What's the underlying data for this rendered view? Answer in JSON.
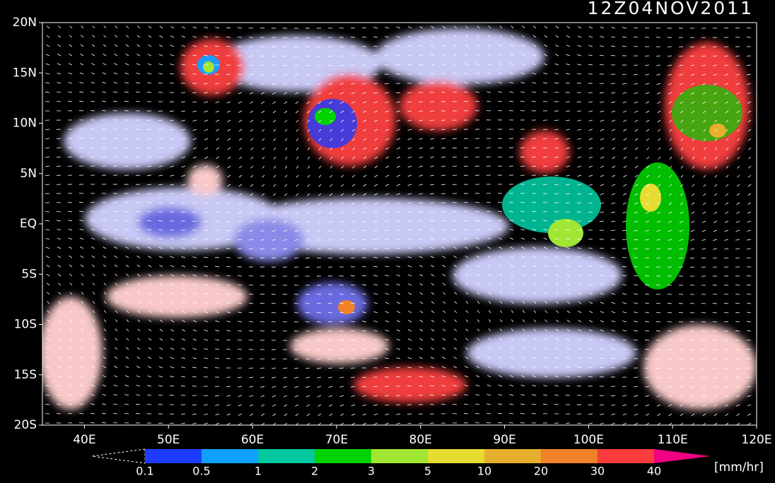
{
  "map": {
    "title": "12Z04NOV2011",
    "xlim": [
      35,
      120
    ],
    "ylim": [
      -20,
      20
    ],
    "lon_ticks": [
      {
        "value": 40,
        "label": "40E"
      },
      {
        "value": 50,
        "label": "50E"
      },
      {
        "value": 60,
        "label": "60E"
      },
      {
        "value": 70,
        "label": "70E"
      },
      {
        "value": 80,
        "label": "80E"
      },
      {
        "value": 90,
        "label": "90E"
      },
      {
        "value": 100,
        "label": "100E"
      },
      {
        "value": 110,
        "label": "110E"
      },
      {
        "value": 120,
        "label": "120E"
      }
    ],
    "lat_ticks": [
      {
        "value": 20,
        "label": "20N"
      },
      {
        "value": 15,
        "label": "15N"
      },
      {
        "value": 10,
        "label": "10N"
      },
      {
        "value": 5,
        "label": "5N"
      },
      {
        "value": 0,
        "label": "EQ"
      },
      {
        "value": -5,
        "label": "5S"
      },
      {
        "value": -10,
        "label": "10S"
      },
      {
        "value": -15,
        "label": "15S"
      },
      {
        "value": -20,
        "label": "20S"
      }
    ],
    "colorbar": {
      "levels": [
        0.1,
        0.5,
        1,
        2,
        3,
        5,
        10,
        20,
        30,
        40
      ],
      "colors": [
        "#1e3cff",
        "#10a0ff",
        "#00c8a0",
        "#00d200",
        "#a0e632",
        "#e6dc32",
        "#e6af2d",
        "#f08228",
        "#fa3c3c",
        "#f00082"
      ],
      "unit": "[mm/hr]"
    }
  }
}
